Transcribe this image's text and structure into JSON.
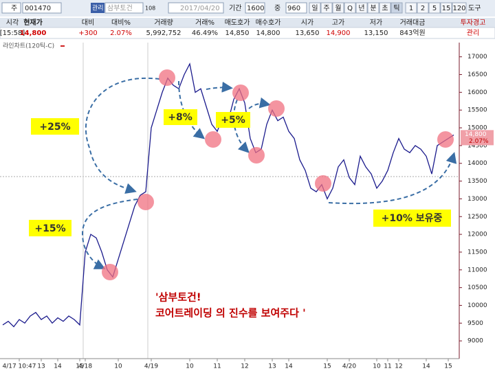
{
  "toolbar": {
    "market": "주",
    "code": "001470",
    "status": "관리",
    "name": "삼부토건",
    "count": "108",
    "date": "2017/04/20",
    "period_label": "기간",
    "period": "1600",
    "mid_label": "중",
    "mid": "960",
    "periods": [
      "일",
      "주",
      "월",
      "Q",
      "년",
      "분",
      "초",
      "틱"
    ],
    "intervals": [
      "1",
      "2",
      "5",
      "15",
      "120"
    ],
    "tools": "도구"
  },
  "quote": {
    "headers": [
      "시각",
      "현재가",
      "대비",
      "대비%",
      "거래량",
      "거래%",
      "매도호가",
      "매수호가",
      "시가",
      "고가",
      "저가",
      "거래대금",
      "투자경고"
    ],
    "values": [
      "[15:58]",
      "14,800",
      "+300",
      "2.07%",
      "5,992,752",
      "46.49%",
      "14,850",
      "14,800",
      "13,650",
      "14,900",
      "13,150",
      "843억원",
      "관리"
    ]
  },
  "price_tag": {
    "price": "14,800",
    "change": "2.07%"
  },
  "chart_data": {
    "type": "line",
    "annotations": [
      "+25%",
      "+15%",
      "+8%",
      "+5%",
      "+10% 보유중",
      "'삼부토건!",
      "코어트레이딩 의 진수를 보여주다 '"
    ],
    "categories": [
      null,
      null,
      null,
      "4/17 10:47",
      null,
      null,
      null,
      "13",
      null,
      null,
      "14",
      null,
      null,
      null,
      "15",
      "4/18",
      null,
      null,
      null,
      null,
      null,
      "10",
      null,
      null,
      null,
      null,
      null,
      "4/19",
      null,
      null,
      null,
      null,
      null,
      null,
      "10",
      null,
      null,
      null,
      null,
      "11",
      null,
      null,
      null,
      null,
      "12",
      null,
      null,
      null,
      null,
      "13",
      null,
      null,
      "14",
      null,
      null,
      null,
      null,
      null,
      null,
      "15",
      null,
      null,
      null,
      "4/20",
      null,
      null,
      null,
      null,
      "10",
      null,
      "11",
      null,
      "12",
      null,
      null,
      null,
      null,
      "14",
      null,
      null,
      null,
      "15",
      null
    ],
    "series": [
      {
        "name": "라인차트(120틱-C)",
        "color": "#1a1a8c",
        "values": [
          9450,
          9550,
          9400,
          9600,
          9500,
          9700,
          9800,
          9600,
          9700,
          9500,
          9650,
          9550,
          9700,
          9600,
          9450,
          11500,
          12000,
          11900,
          11500,
          11000,
          10800,
          11300,
          11800,
          12300,
          12800,
          13100,
          13200,
          15000,
          15500,
          16000,
          16400,
          16200,
          16100,
          16500,
          16800,
          16000,
          16100,
          15600,
          15100,
          14900,
          15300,
          15200,
          15800,
          16100,
          15700,
          14700,
          14300,
          14400,
          15100,
          15500,
          15200,
          15300,
          14900,
          14700,
          14100,
          13800,
          13300,
          13200,
          13400,
          13000,
          13300,
          13900,
          14100,
          13600,
          13400,
          14200,
          13900,
          13700,
          13300,
          13500,
          13800,
          14300,
          14700,
          14400,
          14300,
          14500,
          14400,
          14200,
          13700,
          14500,
          14600,
          14700,
          14800
        ]
      }
    ],
    "ylim": [
      8500,
      17400
    ],
    "yticks": [
      9000,
      9500,
      10000,
      10500,
      11000,
      11500,
      12000,
      12500,
      13000,
      13500,
      14000,
      14500,
      15000,
      15500,
      16000,
      16500,
      17000
    ],
    "grid": false
  }
}
